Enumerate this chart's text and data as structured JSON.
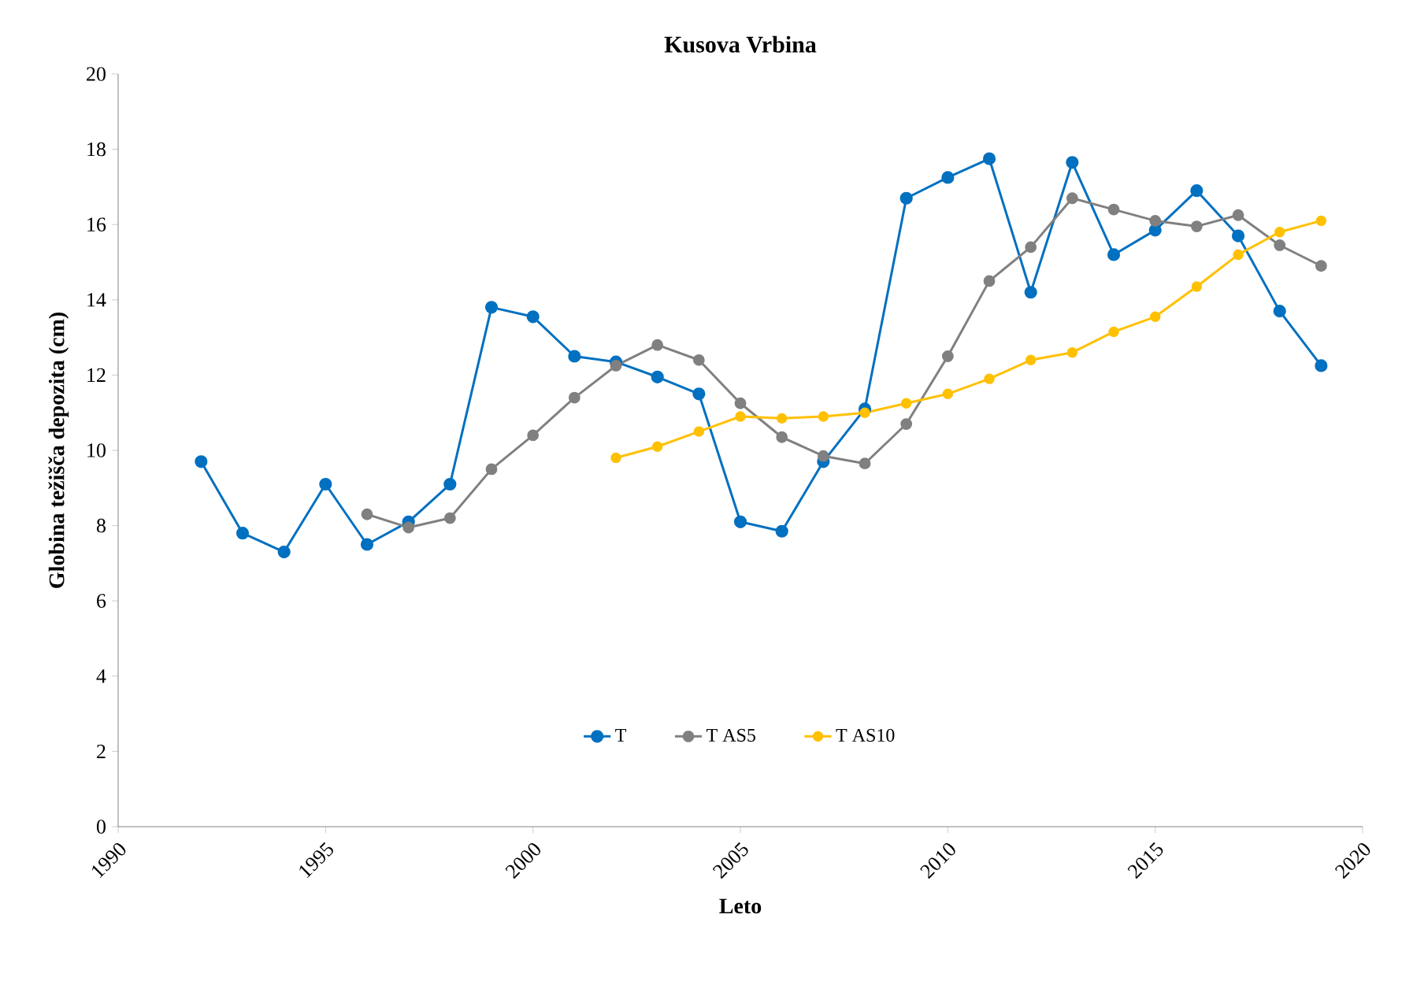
{
  "chart_data": {
    "type": "line",
    "title": "Kusova Vrbina",
    "xlabel": "Leto",
    "ylabel": "Globina težišča depozita (cm)",
    "xlim": [
      1990,
      2020
    ],
    "xticks": [
      1990,
      1995,
      2000,
      2005,
      2010,
      2015,
      2020
    ],
    "ylim": [
      0,
      20
    ],
    "yticks": [
      0,
      2,
      4,
      6,
      8,
      10,
      12,
      14,
      16,
      18,
      20
    ],
    "legend": "bottom",
    "marker": "circle",
    "grid": false,
    "series": [
      {
        "name": "T",
        "color": "#0070c0",
        "x": [
          1992,
          1993,
          1994,
          1995,
          1996,
          1997,
          1998,
          1999,
          2000,
          2001,
          2002,
          2003,
          2004,
          2005,
          2006,
          2007,
          2008,
          2009,
          2010,
          2011,
          2012,
          2013,
          2014,
          2015,
          2016,
          2017,
          2018,
          2019
        ],
        "values": [
          9.7,
          7.8,
          7.3,
          9.1,
          7.5,
          8.1,
          9.1,
          13.8,
          13.55,
          12.5,
          12.35,
          11.95,
          11.5,
          8.1,
          7.85,
          9.7,
          11.1,
          16.7,
          17.25,
          17.75,
          14.2,
          17.65,
          15.2,
          15.85,
          16.9,
          15.7,
          13.7,
          12.25
        ]
      },
      {
        "name": "T AS5",
        "color": "#808080",
        "x": [
          1996,
          1997,
          1998,
          1999,
          2000,
          2001,
          2002,
          2003,
          2004,
          2005,
          2006,
          2007,
          2008,
          2009,
          2010,
          2011,
          2012,
          2013,
          2014,
          2015,
          2016,
          2017,
          2018,
          2019
        ],
        "values": [
          8.3,
          7.95,
          8.2,
          9.5,
          10.4,
          11.4,
          12.25,
          12.8,
          12.4,
          11.25,
          10.35,
          9.85,
          9.65,
          10.7,
          12.5,
          14.5,
          15.4,
          16.7,
          16.4,
          16.1,
          15.95,
          16.25,
          15.45,
          14.9
        ]
      },
      {
        "name": "T AS10",
        "color": "#ffc000",
        "x": [
          2002,
          2003,
          2004,
          2005,
          2006,
          2007,
          2008,
          2009,
          2010,
          2011,
          2012,
          2013,
          2014,
          2015,
          2016,
          2017,
          2018,
          2019
        ],
        "values": [
          9.8,
          10.1,
          10.5,
          10.9,
          10.85,
          10.9,
          11.0,
          11.25,
          11.5,
          11.9,
          12.4,
          12.6,
          13.15,
          13.55,
          14.35,
          15.2,
          15.8,
          16.1
        ]
      }
    ]
  }
}
